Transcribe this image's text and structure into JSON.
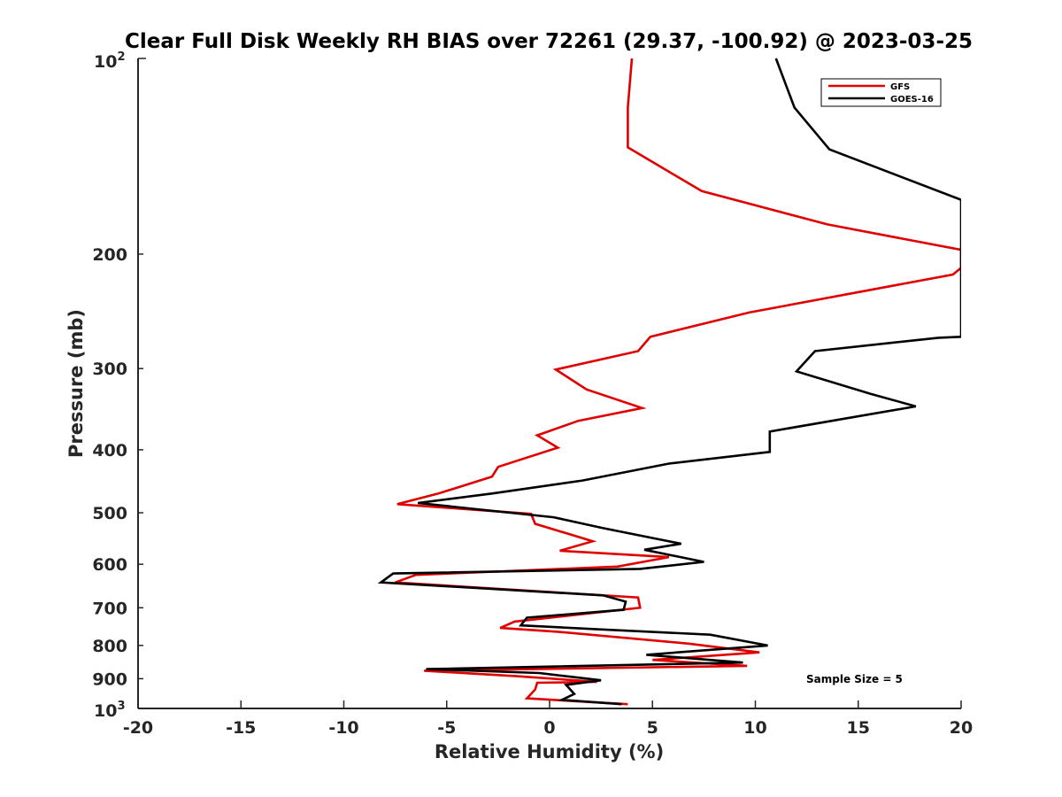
{
  "chart_data": {
    "type": "line",
    "title": "Clear Full Disk Weekly RH BIAS over 72261 (29.37, -100.92) @ 2023-03-25",
    "xlabel": "Relative Humidity (%)",
    "ylabel": "Pressure (mb)",
    "xlim": [
      -20,
      20
    ],
    "ylim": [
      100,
      1000
    ],
    "y_scale": "log",
    "y_reversed": true,
    "x_ticks": [
      -20,
      -15,
      -10,
      -5,
      0,
      5,
      10,
      15,
      20
    ],
    "x_tick_labels": [
      "-20",
      "-15",
      "-10",
      "-5",
      "0",
      "5",
      "10",
      "15",
      "20"
    ],
    "y_ticks": [
      200,
      300,
      400,
      500,
      600,
      700,
      800,
      900
    ],
    "y_tick_labels": [
      "200",
      "300",
      "400",
      "500",
      "600",
      "700",
      "800",
      "900"
    ],
    "y_end_labels": {
      "top_base": "10",
      "top_exp": "2",
      "bottom_base": "10",
      "bottom_exp": "3"
    },
    "grid": false,
    "legend_position": "top-right",
    "annotation": "Sample Size = 5",
    "series": [
      {
        "name": "GFS",
        "color": "#e00000",
        "x": [
          4.0,
          3.8,
          3.8,
          7.4,
          13.5,
          20.0,
          20.0,
          19.6,
          9.7,
          4.9,
          4.3,
          0.3,
          1.8,
          4.5,
          1.4,
          -0.6,
          0.4,
          -2.5,
          -2.8,
          -5.4,
          -7.4,
          -0.9,
          -0.7,
          2.1,
          0.5,
          5.8,
          3.3,
          -6.5,
          -7.5,
          4.3,
          4.4,
          -1.7,
          -2.4,
          0.4,
          6.8,
          10.2,
          5.0,
          9.6,
          -6.1,
          -1.6,
          2.3,
          -0.6,
          -0.7,
          -1.1,
          3.8
        ],
        "y": [
          100,
          119,
          137,
          160,
          180,
          197,
          210,
          215,
          246,
          268,
          282,
          301,
          323,
          345,
          361,
          380,
          397,
          425,
          440,
          467,
          485,
          502,
          520,
          553,
          572,
          585,
          605,
          623,
          640,
          675,
          700,
          735,
          752,
          762,
          795,
          820,
          842,
          860,
          875,
          892,
          910,
          913,
          935,
          965,
          985
        ]
      },
      {
        "name": "GOES-16",
        "color": "#000000",
        "x": [
          11.0,
          11.9,
          13.6,
          20.0,
          20.0,
          18.9,
          12.9,
          12.0,
          15.6,
          17.8,
          10.7,
          10.7,
          5.8,
          1.6,
          -2.8,
          -6.4,
          0.2,
          2.6,
          6.4,
          4.6,
          7.5,
          4.4,
          -7.6,
          -8.2,
          2.6,
          3.7,
          3.6,
          -1.1,
          -1.4,
          2.2,
          7.8,
          10.6,
          4.7,
          9.4,
          -6.0,
          -0.5,
          2.5,
          0.8,
          1.2,
          0.6,
          3.5
        ],
        "y": [
          100,
          119,
          138,
          165,
          268,
          269,
          282,
          303,
          328,
          343,
          375,
          403,
          420,
          446,
          467,
          483,
          508,
          528,
          558,
          570,
          595,
          610,
          620,
          640,
          670,
          685,
          705,
          725,
          745,
          755,
          770,
          800,
          827,
          850,
          870,
          882,
          905,
          920,
          950,
          970,
          985
        ]
      }
    ]
  }
}
